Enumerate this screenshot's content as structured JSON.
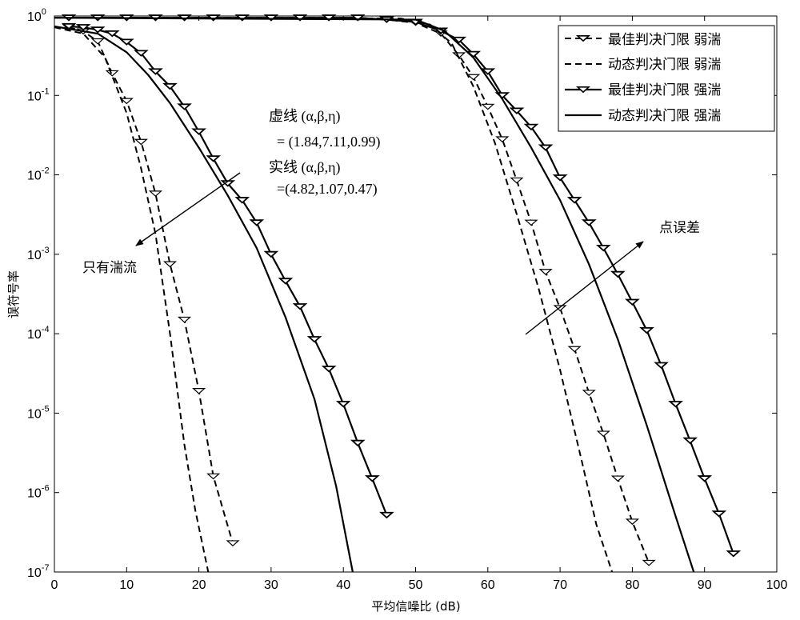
{
  "chart_data": {
    "type": "line",
    "xlabel": "平均信噪比 (dB)",
    "ylabel": "误符号率",
    "xlim": [
      0,
      100
    ],
    "ylim_exp": [
      -7,
      0
    ],
    "y_scale": "log",
    "grid": false,
    "legend_position": "top-right",
    "x_ticks": [
      "0",
      "10",
      "20",
      "30",
      "40",
      "50",
      "60",
      "70",
      "80",
      "90",
      "100"
    ],
    "y_tick_exponents": [
      "0",
      "-1",
      "-2",
      "-3",
      "-4",
      "-5",
      "-6",
      "-7"
    ],
    "y_tick_base": "10",
    "series": [
      {
        "name": "最佳判决门限 弱湍",
        "style": "dashed-marker",
        "group": "turbulence-only",
        "x": [
          2,
          4,
          6,
          8,
          10,
          12,
          14,
          16,
          18,
          20,
          22,
          24.7
        ],
        "y": [
          0.72,
          0.64,
          0.48,
          0.19,
          0.085,
          0.026,
          0.0058,
          0.00075,
          0.00015,
          1.9e-05,
          1.6e-06,
          2.3e-07
        ]
      },
      {
        "name": "动态判决门限 弱湍",
        "style": "dashed",
        "group": "turbulence-only",
        "x": [
          0,
          4,
          7,
          10,
          12,
          14,
          16,
          18,
          19.5,
          21.3
        ],
        "y": [
          0.72,
          0.6,
          0.3,
          0.06,
          0.012,
          0.0018,
          0.0001,
          4e-06,
          6e-07,
          1e-07
        ]
      },
      {
        "name": "最佳判决门限 强湍",
        "style": "solid-marker",
        "group": "turbulence-only",
        "x": [
          2,
          4,
          6,
          8,
          10,
          12,
          14,
          16,
          18,
          20,
          22,
          24,
          26,
          28,
          30,
          32,
          34,
          36,
          38,
          40,
          42,
          44,
          46
        ],
        "y": [
          0.74,
          0.72,
          0.67,
          0.6,
          0.47,
          0.34,
          0.2,
          0.13,
          0.072,
          0.035,
          0.016,
          0.0078,
          0.0048,
          0.0025,
          0.001,
          0.00046,
          0.00022,
          8.5e-05,
          3.6e-05,
          1.3e-05,
          4.2e-06,
          1.5e-06,
          5.2e-07
        ]
      },
      {
        "name": "动态判决门限 强湍",
        "style": "solid",
        "group": "turbulence-only",
        "x": [
          0,
          6,
          10,
          13,
          16,
          20,
          24,
          28,
          32,
          36,
          39,
          41.3
        ],
        "y": [
          0.74,
          0.6,
          0.35,
          0.18,
          0.08,
          0.022,
          0.0055,
          0.0012,
          0.00016,
          1.5e-05,
          1.2e-06,
          1e-07
        ]
      },
      {
        "name": "最佳判决门限 弱湍",
        "style": "dashed-marker",
        "group": "pointing-error",
        "x": [
          2,
          6,
          10,
          14,
          18,
          22,
          26,
          30,
          34,
          38,
          42,
          46,
          50,
          53.5,
          56,
          58,
          60,
          62,
          64,
          66,
          68,
          70,
          72,
          74,
          76,
          78,
          80,
          82.3
        ],
        "y": [
          0.95,
          0.95,
          0.95,
          0.95,
          0.95,
          0.95,
          0.95,
          0.95,
          0.95,
          0.95,
          0.95,
          0.9,
          0.82,
          0.6,
          0.32,
          0.17,
          0.072,
          0.028,
          0.0085,
          0.0025,
          0.0006,
          0.00021,
          6.4e-05,
          1.8e-05,
          5.5e-06,
          1.5e-06,
          4.3e-07,
          1.3e-07
        ]
      },
      {
        "name": "动态判决门限 弱湍",
        "style": "dashed",
        "group": "pointing-error",
        "x": [
          0,
          48,
          52,
          55,
          58,
          61,
          64,
          67,
          70,
          73,
          75,
          77.2
        ],
        "y": [
          0.95,
          0.93,
          0.78,
          0.45,
          0.13,
          0.025,
          0.0032,
          0.00038,
          3.5e-05,
          2.5e-06,
          4e-07,
          1e-07
        ]
      },
      {
        "name": "最佳判决门限 强湍",
        "style": "solid-marker",
        "group": "pointing-error",
        "x": [
          2,
          6,
          10,
          14,
          18,
          22,
          26,
          30,
          34,
          38,
          42,
          46,
          50,
          53.5,
          56,
          58,
          60,
          62,
          64,
          66,
          68,
          70,
          72,
          74,
          76,
          78,
          80,
          82,
          84,
          86,
          88,
          90,
          92,
          94
        ],
        "y": [
          0.95,
          0.95,
          0.95,
          0.95,
          0.95,
          0.95,
          0.95,
          0.95,
          0.95,
          0.95,
          0.95,
          0.9,
          0.84,
          0.65,
          0.5,
          0.33,
          0.2,
          0.1,
          0.064,
          0.04,
          0.022,
          0.0092,
          0.0048,
          0.0025,
          0.0012,
          0.00056,
          0.00025,
          0.00011,
          4e-05,
          1.3e-05,
          4.5e-06,
          1.5e-06,
          5.4e-07,
          1.7e-07
        ]
      },
      {
        "name": "动态判决门限 强湍",
        "style": "solid",
        "group": "pointing-error",
        "x": [
          0,
          50,
          54,
          58,
          62,
          66,
          70,
          74,
          78,
          82,
          86,
          88.5
        ],
        "y": [
          0.95,
          0.9,
          0.65,
          0.3,
          0.09,
          0.022,
          0.0048,
          0.00075,
          8.5e-05,
          7e-06,
          5e-07,
          1e-07
        ]
      }
    ],
    "annotations": {
      "dashed_label": "虚线 (α,β,η)",
      "dashed_values": "= (1.84,7.11,0.99)",
      "solid_label": "实线 (α,β,η)",
      "solid_values": "=(4.82,1.07,0.47)",
      "turbulence_only": "只有湍流",
      "pointing_error": "点误差"
    },
    "legend": [
      {
        "label": "最佳判决门限  弱湍",
        "style": "dashed-marker"
      },
      {
        "label": "动态判决门限  弱湍",
        "style": "dashed"
      },
      {
        "label": "最佳判决门限  强湍",
        "style": "solid-marker"
      },
      {
        "label": "动态判决门限  强湍",
        "style": "solid"
      }
    ]
  }
}
